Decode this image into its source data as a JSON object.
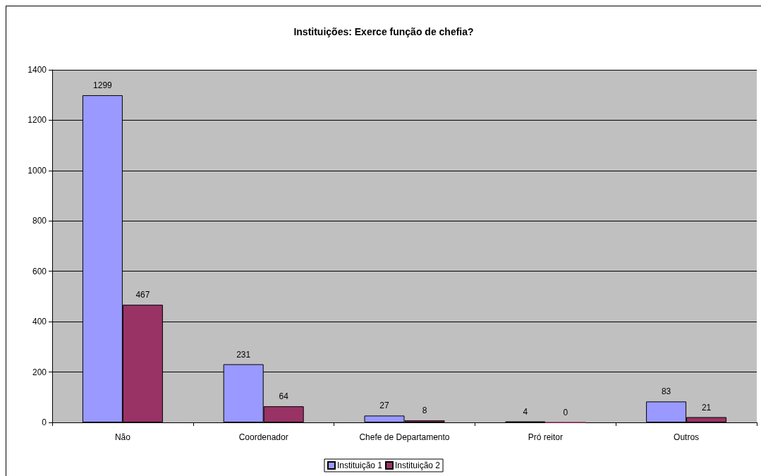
{
  "chart_data": {
    "type": "bar",
    "title": "Instituições: Exerce função de chefia?",
    "categories": [
      "Não",
      "Coordenador",
      "Chefe de Departamento",
      "Pró reitor",
      "Outros"
    ],
    "series": [
      {
        "name": "Instituição 1",
        "color": "#9999ff",
        "values": [
          1299,
          231,
          27,
          4,
          83
        ]
      },
      {
        "name": "Instituição 2",
        "color": "#993366",
        "values": [
          467,
          64,
          8,
          0,
          21
        ]
      }
    ],
    "ylim": [
      0,
      1400
    ],
    "yticks": [
      0,
      200,
      400,
      600,
      800,
      1000,
      1200,
      1400
    ],
    "grid": "y",
    "legend": "bottom",
    "data_labels": true
  }
}
